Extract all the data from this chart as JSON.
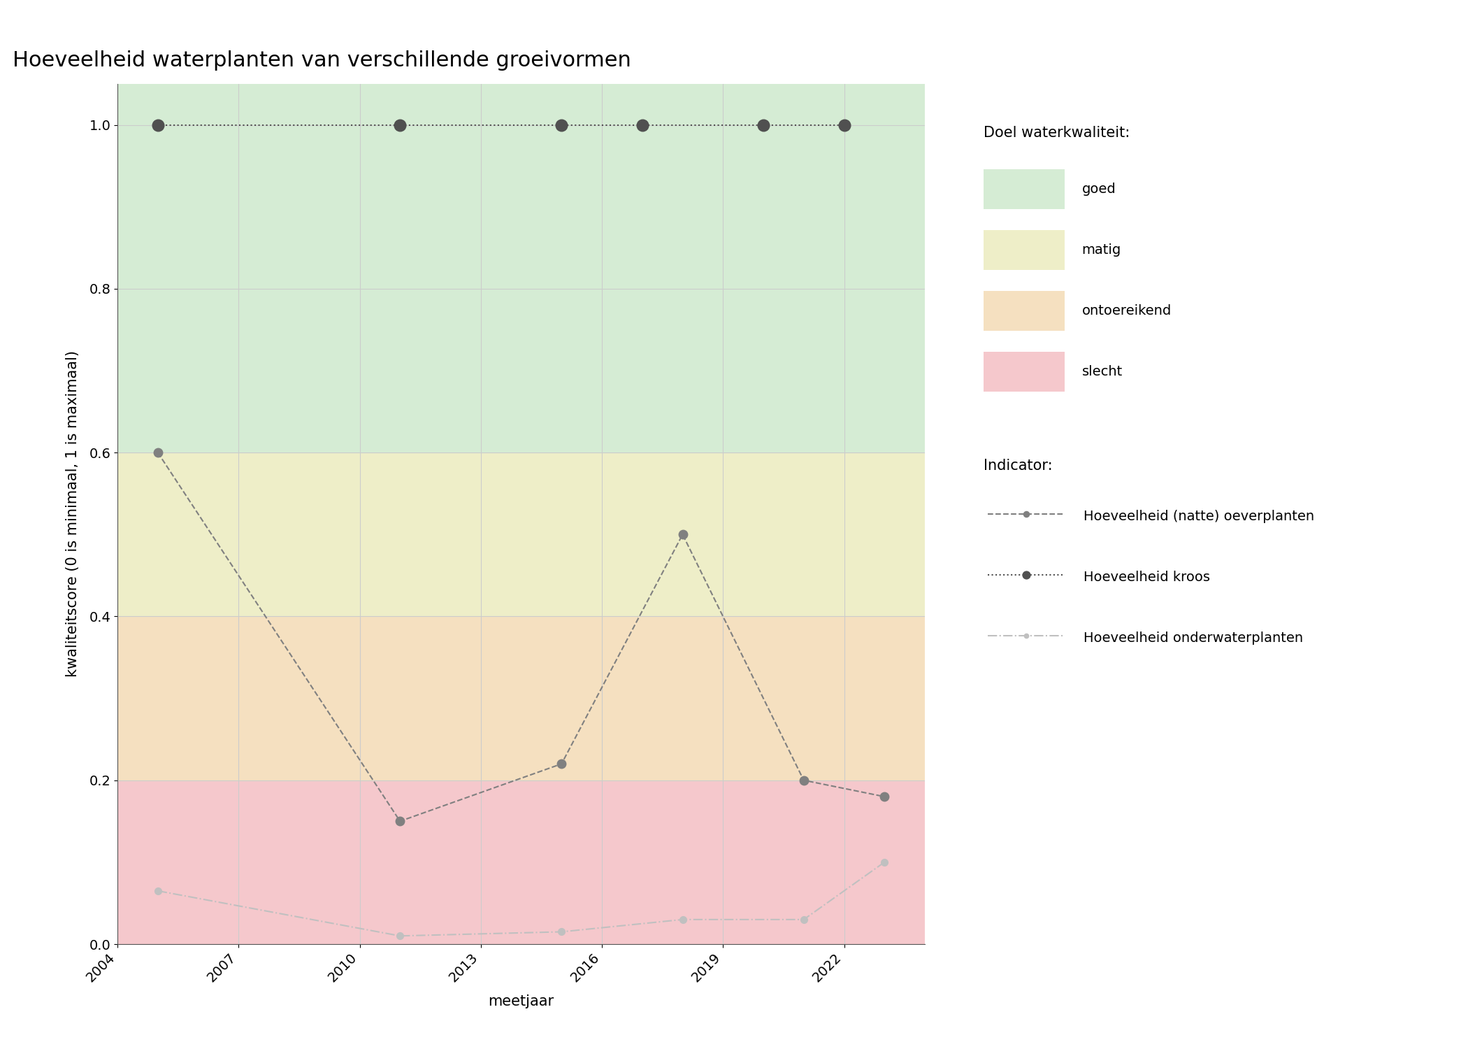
{
  "title": "Hoeveelheid waterplanten van verschillende groeivormen",
  "xlabel": "meetjaar",
  "ylabel": "kwaliteitscore (0 is minimaal, 1 is maximaal)",
  "xlim": [
    2004,
    2024
  ],
  "ylim": [
    0.0,
    1.05
  ],
  "xticks": [
    2004,
    2007,
    2010,
    2013,
    2016,
    2019,
    2022
  ],
  "yticks": [
    0.0,
    0.2,
    0.4,
    0.6,
    0.8,
    1.0
  ],
  "bg_colors": {
    "goed": "#d5ecd4",
    "matig": "#eeeec8",
    "ontoereikend": "#f5e0c0",
    "slecht": "#f5c8cc"
  },
  "bg_ranges": {
    "goed": [
      0.6,
      1.05
    ],
    "matig": [
      0.4,
      0.6
    ],
    "ontoereikend": [
      0.2,
      0.4
    ],
    "slecht": [
      0.0,
      0.2
    ]
  },
  "series": {
    "oeverplanten": {
      "years": [
        2005,
        2011,
        2015,
        2018,
        2021,
        2023
      ],
      "values": [
        0.6,
        0.15,
        0.22,
        0.5,
        0.2,
        0.18
      ],
      "color": "#808080",
      "linestyle": "--",
      "markersize": 9,
      "label": "Hoeveelheid (natte) oeverplanten"
    },
    "kroos": {
      "years": [
        2005,
        2011,
        2015,
        2017,
        2020,
        2022
      ],
      "values": [
        1.0,
        1.0,
        1.0,
        1.0,
        1.0,
        1.0
      ],
      "color": "#505050",
      "linestyle": ":",
      "markersize": 12,
      "label": "Hoeveelheid kroos"
    },
    "onderwaterplanten": {
      "years": [
        2005,
        2011,
        2015,
        2018,
        2021,
        2023
      ],
      "values": [
        0.065,
        0.01,
        0.015,
        0.03,
        0.03,
        0.1
      ],
      "color": "#c0c0c0",
      "linestyle": "-.",
      "markersize": 7,
      "label": "Hoeveelheid onderwaterplanten"
    }
  },
  "legend_doel_title": "Doel waterkwaliteit:",
  "legend_indicator_title": "Indicator:",
  "background_color": "#ffffff",
  "grid_color": "#cccccc",
  "title_fontsize": 22,
  "label_fontsize": 15,
  "tick_fontsize": 14,
  "legend_fontsize": 14,
  "legend_title_fontsize": 15
}
